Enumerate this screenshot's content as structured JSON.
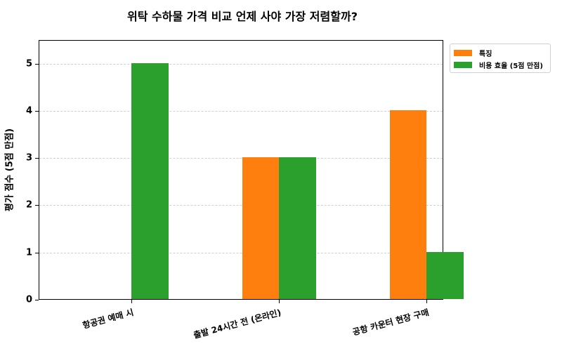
{
  "chart_data": {
    "type": "bar",
    "title": "위탁 수하물 가격 비교 언제 사야 가장 저렴할까?",
    "xlabel": "",
    "ylabel": "평가 점수 (5점 만점)",
    "categories": [
      "항공권 예매 시",
      "출발 24시간 전 (온라인)",
      "공항 카운터 현장 구매"
    ],
    "series": [
      {
        "name": "특징",
        "color": "#ff7f0e",
        "values": [
          0,
          3,
          4
        ]
      },
      {
        "name": "비용 효율 (5점 만점)",
        "color": "#2ca02c",
        "values": [
          5,
          3,
          1
        ]
      }
    ],
    "ylim": [
      0,
      5.5
    ],
    "yticks": [
      0,
      1,
      2,
      3,
      4,
      5
    ],
    "grid": true,
    "legend_position": "outside upper right"
  },
  "title": "위탁 수하물 가격 비교 언제 사야 가장 저렴할까?",
  "yaxis_title": "평가 점수 (5점 만점)",
  "yticks": [
    "0",
    "1",
    "2",
    "3",
    "4",
    "5"
  ],
  "categories": [
    "항공권 예매 시",
    "출발 24시간 전 (온라인)",
    "공항 카운터 현장 구매"
  ],
  "legend": [
    {
      "label": "특징",
      "color": "#ff7f0e"
    },
    {
      "label": "비용 효율 (5점 만점)",
      "color": "#2ca02c"
    }
  ]
}
